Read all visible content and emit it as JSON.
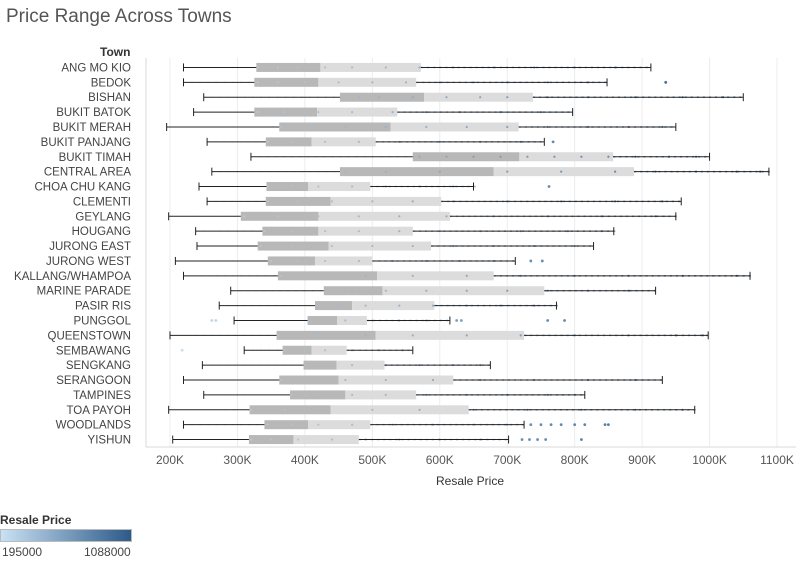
{
  "chart_data": {
    "type": "boxplot",
    "title": "Price Range Across Towns",
    "row_header": "Town",
    "xlabel": "Resale Price",
    "xlim": [
      150000,
      1110000
    ],
    "ticks": [
      {
        "value": 200000,
        "label": "200K"
      },
      {
        "value": 300000,
        "label": "300K"
      },
      {
        "value": 400000,
        "label": "400K"
      },
      {
        "value": 500000,
        "label": "500K"
      },
      {
        "value": 600000,
        "label": "600K"
      },
      {
        "value": 700000,
        "label": "700K"
      },
      {
        "value": 800000,
        "label": "800K"
      },
      {
        "value": 900000,
        "label": "900K"
      },
      {
        "value": 1000000,
        "label": "1000K"
      },
      {
        "value": 1100000,
        "label": "1100K"
      }
    ],
    "grid": true,
    "towns": [
      {
        "name": "ANG MO KIO",
        "min": 220000,
        "q1": 328000,
        "median": 423000,
        "q3": 572000,
        "max": 913000,
        "outliers": [],
        "pts": [
          330000,
          360000,
          390000,
          430000,
          470000,
          520000,
          570000,
          620000,
          680000,
          740000,
          800000,
          860000
        ]
      },
      {
        "name": "BEDOK",
        "min": 220000,
        "q1": 325000,
        "median": 420000,
        "q3": 565000,
        "max": 848000,
        "outliers": [
          935000
        ],
        "pts": [
          330000,
          360000,
          400000,
          450000,
          500000,
          550000,
          600000,
          650000,
          700000,
          760000,
          820000
        ]
      },
      {
        "name": "BISHAN",
        "min": 250000,
        "q1": 452000,
        "median": 577000,
        "q3": 738000,
        "max": 1050000,
        "outliers": [],
        "pts": [
          455000,
          480000,
          510000,
          560000,
          610000,
          660000,
          700000,
          760000,
          820000,
          890000,
          960000,
          1020000
        ]
      },
      {
        "name": "BUKIT BATOK",
        "min": 235000,
        "q1": 325000,
        "median": 418000,
        "q3": 537000,
        "max": 797000,
        "outliers": [],
        "pts": [
          330000,
          370000,
          420000,
          470000,
          530000,
          580000,
          630000,
          690000,
          750000
        ]
      },
      {
        "name": "BUKIT MERAH",
        "min": 195000,
        "q1": 362000,
        "median": 527000,
        "q3": 717000,
        "max": 950000,
        "outliers": [],
        "pts": [
          365000,
          410000,
          460000,
          520000,
          580000,
          640000,
          700000,
          760000,
          820000,
          880000,
          930000
        ]
      },
      {
        "name": "BUKIT PANJANG",
        "min": 255000,
        "q1": 342000,
        "median": 410000,
        "q3": 505000,
        "max": 755000,
        "outliers": [
          768000
        ],
        "pts": [
          345000,
          380000,
          430000,
          480000,
          540000,
          600000,
          660000,
          720000
        ]
      },
      {
        "name": "BUKIT TIMAH",
        "min": 320000,
        "q1": 560000,
        "median": 718000,
        "q3": 857000,
        "max": 1000000,
        "outliers": [],
        "pts": [
          570000,
          610000,
          650000,
          690000,
          730000,
          770000,
          810000,
          850000,
          890000,
          940000,
          980000
        ]
      },
      {
        "name": "CENTRAL AREA",
        "min": 262000,
        "q1": 452000,
        "median": 680000,
        "q3": 888000,
        "max": 1088000,
        "outliers": [],
        "pts": [
          460000,
          520000,
          600000,
          700000,
          780000,
          860000,
          920000,
          980000,
          1040000,
          1075000
        ]
      },
      {
        "name": "CHOA CHU KANG",
        "min": 243000,
        "q1": 343000,
        "median": 405000,
        "q3": 497000,
        "max": 650000,
        "outliers": [
          762000
        ],
        "pts": [
          345000,
          380000,
          420000,
          470000,
          520000,
          570000,
          620000
        ]
      },
      {
        "name": "CLEMENTI",
        "min": 255000,
        "q1": 342000,
        "median": 438000,
        "q3": 602000,
        "max": 958000,
        "outliers": [],
        "pts": [
          345000,
          390000,
          440000,
          500000,
          560000,
          620000,
          700000,
          780000,
          860000,
          930000
        ]
      },
      {
        "name": "GEYLANG",
        "min": 198000,
        "q1": 305000,
        "median": 420000,
        "q3": 615000,
        "max": 950000,
        "outliers": [],
        "pts": [
          310000,
          360000,
          420000,
          480000,
          540000,
          610000,
          680000,
          760000,
          840000,
          920000
        ]
      },
      {
        "name": "HOUGANG",
        "min": 238000,
        "q1": 337000,
        "median": 420000,
        "q3": 560000,
        "max": 858000,
        "outliers": [],
        "pts": [
          340000,
          380000,
          430000,
          480000,
          540000,
          600000,
          660000,
          720000,
          790000,
          840000
        ]
      },
      {
        "name": "JURONG EAST",
        "min": 240000,
        "q1": 330000,
        "median": 435000,
        "q3": 587000,
        "max": 828000,
        "outliers": [],
        "pts": [
          335000,
          380000,
          440000,
          500000,
          560000,
          620000,
          680000,
          740000,
          800000
        ]
      },
      {
        "name": "JURONG WEST",
        "min": 208000,
        "q1": 345000,
        "median": 415000,
        "q3": 500000,
        "max": 712000,
        "outliers": [
          735000,
          752000
        ],
        "pts": [
          350000,
          390000,
          430000,
          480000,
          530000,
          580000,
          630000,
          680000
        ]
      },
      {
        "name": "KALLANG/WHAMPOA",
        "min": 220000,
        "q1": 360000,
        "median": 507000,
        "q3": 680000,
        "max": 1060000,
        "outliers": [],
        "pts": [
          365000,
          420000,
          490000,
          560000,
          640000,
          720000,
          800000,
          880000,
          960000,
          1040000
        ]
      },
      {
        "name": "MARINE PARADE",
        "min": 290000,
        "q1": 428000,
        "median": 515000,
        "q3": 755000,
        "max": 920000,
        "outliers": [],
        "pts": [
          430000,
          470000,
          520000,
          580000,
          640000,
          700000,
          760000,
          820000,
          880000
        ]
      },
      {
        "name": "PASIR RIS",
        "min": 273000,
        "q1": 415000,
        "median": 470000,
        "q3": 592000,
        "max": 773000,
        "outliers": [],
        "pts": [
          420000,
          450000,
          490000,
          540000,
          590000,
          640000,
          690000,
          740000
        ]
      },
      {
        "name": "PUNGGOL",
        "min": 295000,
        "q1": 404000,
        "median": 448000,
        "q3": 492000,
        "max": 615000,
        "outliers": [
          262000,
          268000,
          625000,
          632000,
          760000,
          785000
        ],
        "pts": [
          405000,
          430000,
          460000,
          500000,
          540000,
          580000
        ]
      },
      {
        "name": "QUEENSTOWN",
        "min": 200000,
        "q1": 358000,
        "median": 505000,
        "q3": 725000,
        "max": 998000,
        "outliers": [],
        "pts": [
          360000,
          420000,
          490000,
          560000,
          640000,
          720000,
          800000,
          880000,
          950000,
          990000
        ]
      },
      {
        "name": "SEMBAWANG",
        "min": 310000,
        "q1": 367000,
        "median": 410000,
        "q3": 462000,
        "max": 560000,
        "outliers": [
          218000
        ],
        "pts": [
          370000,
          400000,
          430000,
          470000,
          510000,
          545000
        ]
      },
      {
        "name": "SENGKANG",
        "min": 248000,
        "q1": 398000,
        "median": 447000,
        "q3": 518000,
        "max": 675000,
        "outliers": [],
        "pts": [
          400000,
          430000,
          470000,
          520000,
          570000,
          620000,
          660000
        ]
      },
      {
        "name": "SERANGOON",
        "min": 220000,
        "q1": 362000,
        "median": 450000,
        "q3": 620000,
        "max": 930000,
        "outliers": [],
        "pts": [
          365000,
          410000,
          460000,
          520000,
          590000,
          660000,
          740000,
          820000,
          890000
        ]
      },
      {
        "name": "TAMPINES",
        "min": 250000,
        "q1": 378000,
        "median": 460000,
        "q3": 565000,
        "max": 815000,
        "outliers": [],
        "pts": [
          380000,
          420000,
          470000,
          520000,
          580000,
          640000,
          700000,
          760000,
          800000
        ]
      },
      {
        "name": "TOA PAYOH",
        "min": 198000,
        "q1": 318000,
        "median": 438000,
        "q3": 643000,
        "max": 978000,
        "outliers": [],
        "pts": [
          320000,
          370000,
          430000,
          500000,
          570000,
          650000,
          730000,
          810000,
          890000,
          960000
        ]
      },
      {
        "name": "WOODLANDS",
        "min": 220000,
        "q1": 340000,
        "median": 405000,
        "q3": 497000,
        "max": 725000,
        "outliers": [
          735000,
          750000,
          765000,
          780000,
          800000,
          815000,
          845000,
          850000
        ],
        "pts": [
          345000,
          380000,
          420000,
          470000,
          530000,
          590000,
          650000,
          700000
        ]
      },
      {
        "name": "YISHUN",
        "min": 204000,
        "q1": 317000,
        "median": 383000,
        "q3": 480000,
        "max": 702000,
        "outliers": [
          722000,
          733000,
          745000,
          757000,
          810000
        ],
        "pts": [
          320000,
          350000,
          390000,
          440000,
          490000,
          540000,
          600000,
          660000
        ]
      }
    ]
  },
  "legend": {
    "title": "Resale Price",
    "min_label": "195000",
    "max_label": "1088000",
    "min_color": "#c9e1f3",
    "max_color": "#2c5a8a"
  },
  "colors": {
    "box_dark": "#b8b8b8",
    "box_light": "#dcdcdc",
    "whisker": "#222222",
    "grid": "#ececec"
  }
}
